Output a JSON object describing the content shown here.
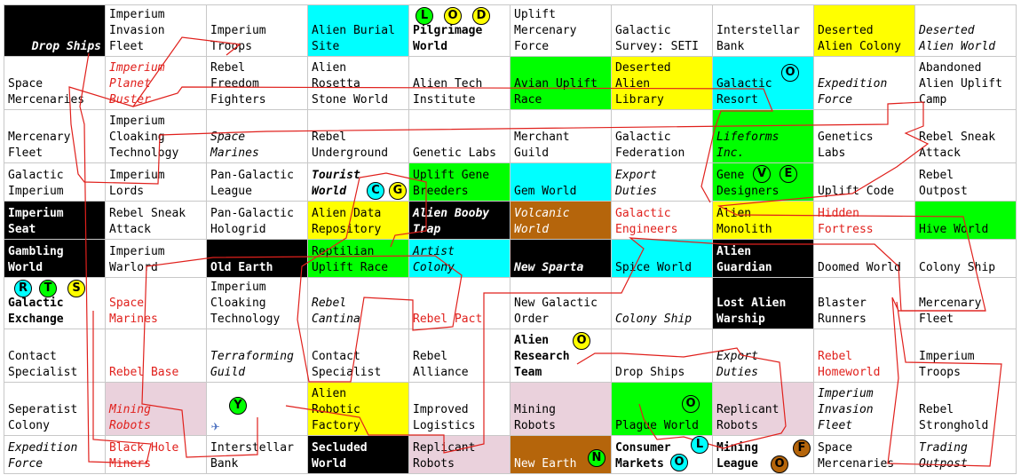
{
  "grid": [
    [
      {
        "text": "Drop Ships",
        "bg": "k",
        "style": "wh it b right"
      },
      {
        "text": "Imperium\nInvasion\nFleet"
      },
      {
        "text": "Imperium\nTroops"
      },
      {
        "text": "Alien Burial\nSite",
        "bg": "c"
      },
      {
        "text": "Pilgrimage\nWorld",
        "style": "b"
      },
      {
        "text": "Uplift\nMercenary\nForce"
      },
      {
        "text": "Galactic\nSurvey: SETI"
      },
      {
        "text": "Interstellar\nBank"
      },
      {
        "text": "Deserted\nAlien Colony",
        "bg": "y"
      },
      {
        "text": "Deserted\nAlien World",
        "style": "it"
      }
    ],
    [
      {
        "text": "Space\nMercenaries"
      },
      {
        "text": "Imperium\nPlanet\nBuster",
        "style": "red it"
      },
      {
        "text": "Rebel\nFreedom\nFighters"
      },
      {
        "text": "Alien\nRosetta\nStone World"
      },
      {
        "text": "Alien Tech\nInstitute"
      },
      {
        "text": "Avian Uplift\nRace",
        "bg": "g"
      },
      {
        "text": "Deserted\nAlien\nLibrary",
        "bg": "y"
      },
      {
        "text": "Galactic\nResort",
        "bg": "c"
      },
      {
        "text": "Expedition\nForce",
        "style": "it"
      },
      {
        "text": "Abandoned\nAlien Uplift\nCamp"
      }
    ],
    [
      {
        "text": "Mercenary\nFleet"
      },
      {
        "text": "Imperium\nCloaking\nTechnology"
      },
      {
        "text": "Space\nMarines",
        "style": "it"
      },
      {
        "text": "Rebel\nUnderground"
      },
      {
        "text": "Genetic Labs"
      },
      {
        "text": "Merchant\nGuild"
      },
      {
        "text": "Galactic\nFederation"
      },
      {
        "text": "Lifeforms\nInc.",
        "bg": "g",
        "style": "it"
      },
      {
        "text": "Genetics\nLabs"
      },
      {
        "text": "Rebel Sneak\nAttack"
      }
    ],
    [
      {
        "text": "Galactic\nImperium"
      },
      {
        "text": "Imperium\nLords"
      },
      {
        "text": "Pan-Galactic\nLeague"
      },
      {
        "text": "Tourist\nWorld",
        "style": "b it"
      },
      {
        "text": "Uplift Gene\nBreeders",
        "bg": "g"
      },
      {
        "text": "Gem World",
        "bg": "c"
      },
      {
        "text": "Export\nDuties",
        "style": "it"
      },
      {
        "text": "Gene\nDesigners",
        "bg": "g"
      },
      {
        "text": "Uplift Code"
      },
      {
        "text": "Rebel\nOutpost"
      }
    ],
    [
      {
        "text": "Imperium\nSeat",
        "bg": "k",
        "style": "wh b"
      },
      {
        "text": "Rebel Sneak\nAttack"
      },
      {
        "text": "Pan-Galactic\nHologrid"
      },
      {
        "text": "Alien Data\nRepository",
        "bg": "y"
      },
      {
        "text": "Alien Booby\nTrap",
        "bg": "k",
        "style": "wh b it"
      },
      {
        "text": "Volcanic\nWorld",
        "bg": "o",
        "style": "wh it"
      },
      {
        "text": "Galactic\nEngineers",
        "style": "red"
      },
      {
        "text": "Alien\nMonolith",
        "bg": "y"
      },
      {
        "text": "Hidden\nFortress",
        "style": "red"
      },
      {
        "text": "Hive World",
        "bg": "g"
      }
    ],
    [
      {
        "text": "Gambling\nWorld",
        "bg": "k",
        "style": "wh b"
      },
      {
        "text": "Imperium\nWarlord"
      },
      {
        "text": "Old Earth",
        "bg": "k",
        "style": "wh b"
      },
      {
        "text": "Reptilian\nUplift Race",
        "bg": "g"
      },
      {
        "text": "Artist\nColony",
        "bg": "c",
        "style": "it"
      },
      {
        "text": "New Sparta",
        "bg": "k",
        "style": "wh b it"
      },
      {
        "text": "Spice World",
        "bg": "c"
      },
      {
        "text": "Alien\nGuardian",
        "bg": "k",
        "style": "wh b"
      },
      {
        "text": "Doomed World"
      },
      {
        "text": "Colony Ship"
      }
    ],
    [
      {
        "text": "Galactic\nExchange",
        "style": "b"
      },
      {
        "text": "Space\nMarines",
        "style": "red"
      },
      {
        "text": "Imperium\nCloaking\nTechnology"
      },
      {
        "text": "Rebel\nCantina",
        "style": "it"
      },
      {
        "text": "Rebel Pact",
        "style": "red"
      },
      {
        "text": "New Galactic\nOrder"
      },
      {
        "text": "Colony Ship",
        "style": "it"
      },
      {
        "text": "Lost Alien\nWarship",
        "bg": "k",
        "style": "wh b"
      },
      {
        "text": "Blaster\nRunners"
      },
      {
        "text": "Mercenary\nFleet"
      }
    ],
    [
      {
        "text": "Contact\nSpecialist"
      },
      {
        "text": "Rebel Base",
        "style": "red"
      },
      {
        "text": "Terraforming\nGuild",
        "style": "it"
      },
      {
        "text": "Contact\nSpecialist"
      },
      {
        "text": "Rebel\nAlliance"
      },
      {
        "text": "Alien\nResearch\nTeam",
        "style": "b"
      },
      {
        "text": "Drop Ships"
      },
      {
        "text": "Export\nDuties",
        "style": "it"
      },
      {
        "text": "Rebel\nHomeworld",
        "style": "red"
      },
      {
        "text": "Imperium\nTroops"
      }
    ],
    [
      {
        "text": "Seperatist\nColony"
      },
      {
        "text": "Mining\nRobots",
        "bg": "p",
        "style": "red it"
      },
      {
        "text": ""
      },
      {
        "text": "Alien\nRobotic\nFactory",
        "bg": "y"
      },
      {
        "text": "Improved\nLogistics"
      },
      {
        "text": "Mining\nRobots",
        "bg": "p"
      },
      {
        "text": "Plague World",
        "bg": "g"
      },
      {
        "text": "Replicant\nRobots",
        "bg": "p"
      },
      {
        "text": "Imperium\nInvasion\nFleet",
        "style": "it"
      },
      {
        "text": "Rebel\nStronghold"
      }
    ],
    [
      {
        "text": "Expedition\nForce",
        "style": "it"
      },
      {
        "text": "Black Hole\nMiners",
        "style": "red"
      },
      {
        "text": "Interstellar\nBank"
      },
      {
        "text": "Secluded\nWorld",
        "bg": "k",
        "style": "wh b"
      },
      {
        "text": "Replicant\nRobots",
        "bg": "p"
      },
      {
        "text": "New Earth",
        "bg": "o",
        "style": "wh"
      },
      {
        "text": "Consumer\nMarkets",
        "style": "b"
      },
      {
        "text": "Mining\nLeague",
        "style": "b"
      },
      {
        "text": "Space\nMercenaries"
      },
      {
        "text": "Trading\nOutpost",
        "style": "it"
      }
    ]
  ],
  "tokens": [
    {
      "label": "L",
      "color": "green"
    },
    {
      "label": "O",
      "color": "yellow"
    },
    {
      "label": "D",
      "color": "yellow"
    },
    {
      "label": "O",
      "color": "none"
    },
    {
      "label": "C",
      "color": "cyan"
    },
    {
      "label": "G",
      "color": "yellow"
    },
    {
      "label": "V",
      "color": "green"
    },
    {
      "label": "E",
      "color": "green"
    },
    {
      "label": "R",
      "color": "cyan"
    },
    {
      "label": "T",
      "color": "green"
    },
    {
      "label": "S",
      "color": "yellow"
    },
    {
      "label": "O",
      "color": "yellow"
    },
    {
      "label": "Y",
      "color": "green"
    },
    {
      "label": "O",
      "color": "green"
    },
    {
      "label": "L",
      "color": "cyan"
    },
    {
      "label": "N",
      "color": "green"
    },
    {
      "label": "O",
      "color": "cyan"
    },
    {
      "label": "F",
      "color": "brown"
    },
    {
      "label": "O",
      "color": "brown"
    }
  ],
  "player_ship_icon": "airplane-icon",
  "path_color": "#e0201c",
  "colors": {
    "black": "#000000",
    "cyan": "#00ffff",
    "yellow": "#ffff00",
    "green": "#00ff00",
    "brown": "#b5650b",
    "pink": "#ead1dc",
    "red_text": "#e0201c"
  }
}
